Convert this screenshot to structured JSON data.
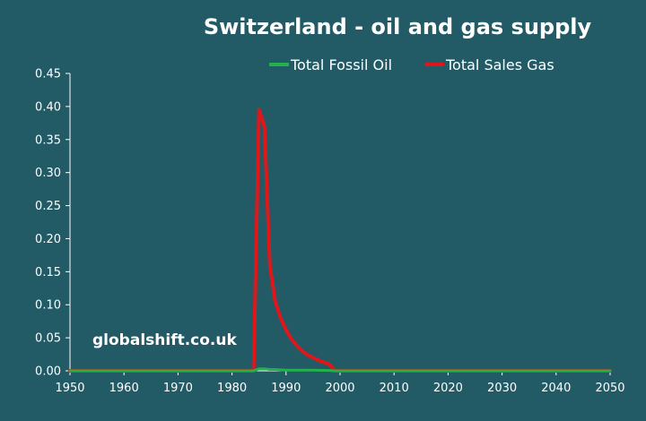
{
  "chart_data": {
    "type": "line",
    "title": "Switzerland - oil and gas supply",
    "xlabel": "",
    "ylabel": "",
    "xlim": [
      1950,
      2050
    ],
    "ylim": [
      0,
      0.45
    ],
    "xticks": [
      "1950",
      "1960",
      "1970",
      "1980",
      "1990",
      "2000",
      "2010",
      "2020",
      "2030",
      "2040",
      "2050"
    ],
    "yticks": [
      "0.00",
      "0.05",
      "0.10",
      "0.15",
      "0.20",
      "0.25",
      "0.30",
      "0.35",
      "0.40",
      "0.45"
    ],
    "grid": false,
    "legend_position": "top",
    "series": [
      {
        "name": "Total Fossil Oil",
        "color": "#22b14c",
        "x": [
          1950,
          1984,
          1985,
          1986,
          1987,
          1988,
          1990,
          1995,
          1998,
          1999,
          2050
        ],
        "y": [
          0,
          0,
          0.003,
          0.003,
          0.002,
          0.002,
          0.001,
          0.001,
          0.0005,
          0,
          0
        ]
      },
      {
        "name": "Total Sales Gas",
        "color": "#e0171a",
        "x": [
          1950,
          1984,
          1985,
          1986,
          1987,
          1988,
          1989,
          1990,
          1991,
          1992,
          1993,
          1994,
          1995,
          1996,
          1997,
          1998,
          1999,
          2050
        ],
        "y": [
          0,
          0,
          0.395,
          0.37,
          0.16,
          0.105,
          0.08,
          0.062,
          0.048,
          0.038,
          0.03,
          0.024,
          0.02,
          0.016,
          0.013,
          0.01,
          0,
          0
        ]
      }
    ]
  },
  "watermark": "globalshift.co.uk"
}
